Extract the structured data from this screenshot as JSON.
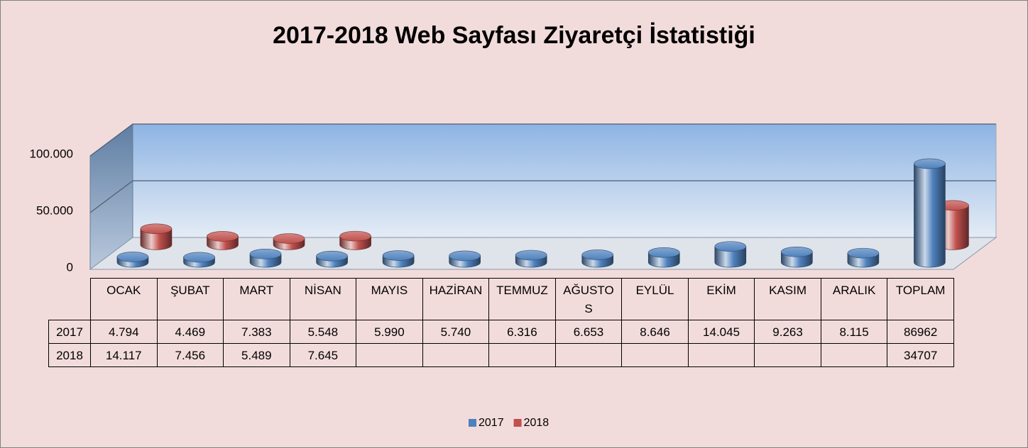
{
  "chart_data": {
    "type": "bar",
    "title": "2017-2018 Web Sayfası Ziyaretçi İstatistiği",
    "categories": [
      "OCAK",
      "ŞUBAT",
      "MART",
      "NİSAN",
      "MAYIS",
      "HAZİRAN",
      "TEMMUZ",
      "AĞUSTOS",
      "EYLÜL",
      "EKİM",
      "KASIM",
      "ARALIK",
      "TOPLAM"
    ],
    "series": [
      {
        "name": "2017",
        "color": "#4f81bd",
        "values": [
          4794,
          4469,
          7383,
          5548,
          5990,
          5740,
          6316,
          6653,
          8646,
          14045,
          9263,
          8115,
          86962
        ],
        "value_labels": [
          "4.794",
          "4.469",
          "7.383",
          "5.548",
          "5.990",
          "5.740",
          "6.316",
          "6.653",
          "8.646",
          "14.045",
          "9.263",
          "8.115",
          "86962"
        ]
      },
      {
        "name": "2018",
        "color": "#c0504d",
        "values": [
          14117,
          7456,
          5489,
          7645,
          null,
          null,
          null,
          null,
          null,
          null,
          null,
          null,
          34707
        ],
        "value_labels": [
          "14.117",
          "7.456",
          "5.489",
          "7.645",
          null,
          null,
          null,
          null,
          null,
          null,
          null,
          null,
          "34707"
        ]
      }
    ],
    "ylim": [
      0,
      100000
    ],
    "yticks": [
      0,
      {
        "value": 50000,
        "label": "50.000"
      },
      {
        "value": 100000,
        "label": "100.000"
      }
    ],
    "grid": true,
    "legend": "bottom"
  }
}
